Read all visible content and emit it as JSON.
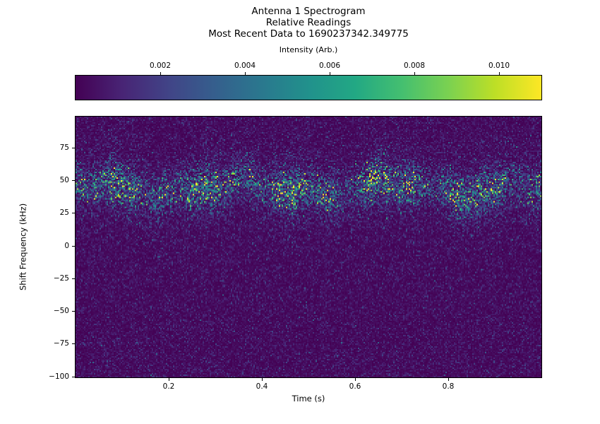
{
  "figure": {
    "background_color": "#ffffff",
    "text_color": "#000000",
    "spine_color": "#000000"
  },
  "chart_data": {
    "type": "heatmap",
    "subtype": "spectrogram",
    "title_lines": [
      "Antenna 1 Spectrogram",
      "Relative Readings",
      "Most Recent Data to 1690237342.349775"
    ],
    "xlabel": "Time (s)",
    "ylabel": "Shift Frequency (kHz)",
    "xlim": [
      0,
      1.0
    ],
    "ylim": [
      -100.5,
      99
    ],
    "x_ticks": [
      {
        "v": 0.2,
        "label": "0.2"
      },
      {
        "v": 0.4,
        "label": "0.4"
      },
      {
        "v": 0.6,
        "label": "0.6"
      },
      {
        "v": 0.8,
        "label": "0.8"
      }
    ],
    "y_ticks": [
      {
        "v": 75,
        "label": "75"
      },
      {
        "v": 50,
        "label": "50"
      },
      {
        "v": 25,
        "label": "25"
      },
      {
        "v": 0,
        "label": "0"
      },
      {
        "v": -25,
        "label": "−25"
      },
      {
        "v": -50,
        "label": "−50"
      },
      {
        "v": -75,
        "label": "−75"
      },
      {
        "v": -100,
        "label": "−100"
      }
    ],
    "colorbar": {
      "label": "Intensity (Arb.)",
      "orientation": "horizontal",
      "position": "top",
      "lim": [
        0,
        0.011
      ],
      "ticks": [
        {
          "v": 0.002,
          "label": "0.002"
        },
        {
          "v": 0.004,
          "label": "0.004"
        },
        {
          "v": 0.006,
          "label": "0.006"
        },
        {
          "v": 0.008,
          "label": "0.008"
        },
        {
          "v": 0.01,
          "label": "0.010"
        }
      ]
    },
    "colormap": "viridis",
    "colormap_stops": [
      [
        0.0,
        "#440154"
      ],
      [
        0.1,
        "#482475"
      ],
      [
        0.2,
        "#414487"
      ],
      [
        0.3,
        "#355f8d"
      ],
      [
        0.4,
        "#2a788e"
      ],
      [
        0.5,
        "#21918c"
      ],
      [
        0.6,
        "#22a884"
      ],
      [
        0.7,
        "#44bf70"
      ],
      [
        0.8,
        "#7ad151"
      ],
      [
        0.9,
        "#bddf26"
      ],
      [
        1.0,
        "#fde725"
      ]
    ],
    "signal": {
      "description": "Uniform dark-purple noise floor across all frequencies with a speckled noisy signal band of blue/cyan points centered near +45 kHz, wandering ±5 kHz over time, densest between ~25 and ~60 kHz, fading tails toward ~15 and ~70 kHz",
      "band_center_khz": 44,
      "band_sigma_khz": 9,
      "band_visible_extent_khz": [
        15,
        70
      ],
      "background_intensity_mean": 0.00045,
      "band_intensity_mean_peak": 0.0029,
      "grid": false,
      "legend": false
    }
  }
}
